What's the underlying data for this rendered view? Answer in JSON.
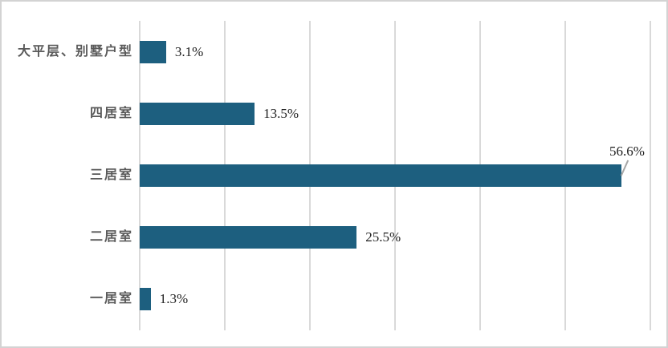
{
  "chart_data": {
    "type": "bar",
    "orientation": "horizontal",
    "title": "",
    "xlabel": "",
    "ylabel": "",
    "categories": [
      "大平层、别墅户型",
      "四居室",
      "三居室",
      "二居室",
      "一居室"
    ],
    "values": [
      3.1,
      13.5,
      56.6,
      25.5,
      1.3
    ],
    "value_labels": [
      "3.1%",
      "13.5%",
      "56.6%",
      "25.5%",
      "1.3%"
    ],
    "xlim": [
      0,
      60
    ],
    "gridline_step": 10,
    "grid": true,
    "legend": "none",
    "callout": {
      "index": 2,
      "position": "above-with-leader"
    },
    "colors": {
      "bar": "#1d5f7f",
      "gridline": "#d9d9d9",
      "category_label": "#595959",
      "value_label": "#1f1f1f",
      "leader_line": "#a6a6a6",
      "frame_border": "#d3d3d3",
      "background": "#ffffff"
    }
  }
}
